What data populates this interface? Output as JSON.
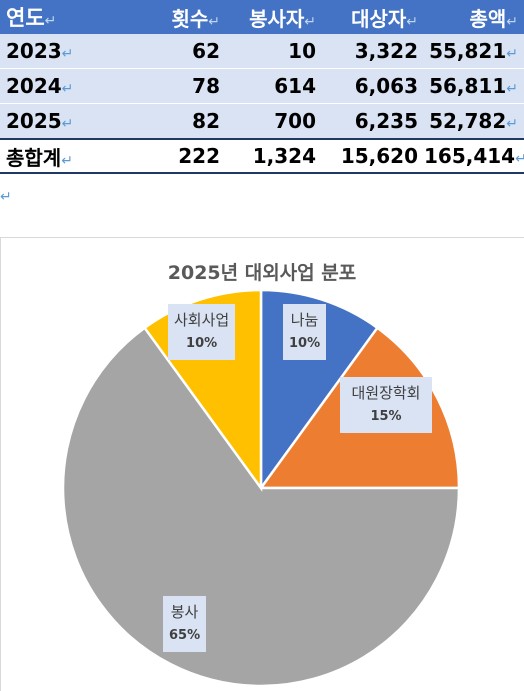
{
  "table": {
    "headers": [
      "연도",
      "횟수",
      "봉사자",
      "대상자",
      "총액"
    ],
    "rows": [
      [
        "2023",
        "62",
        "10",
        "3,322",
        "55,821"
      ],
      [
        "2024",
        "78",
        "614",
        "6,063",
        "56,811"
      ],
      [
        "2025",
        "82",
        "700",
        "6,235",
        "52,782"
      ]
    ],
    "total": [
      "총합계",
      "222",
      "1,324",
      "15,620",
      "165,414"
    ],
    "mark": "↵"
  },
  "chart_data": {
    "type": "pie",
    "title": "2025년 대외사업 분포",
    "categories": [
      "나눔",
      "대원장학회",
      "봉사",
      "사회사업"
    ],
    "values": [
      10,
      15,
      65,
      10
    ],
    "labels": [
      "10%",
      "15%",
      "65%",
      "10%"
    ],
    "colors": [
      "#4472c4",
      "#ed7d31",
      "#a5a5a5",
      "#ffc000"
    ],
    "start": "12 o'clock, clockwise"
  }
}
